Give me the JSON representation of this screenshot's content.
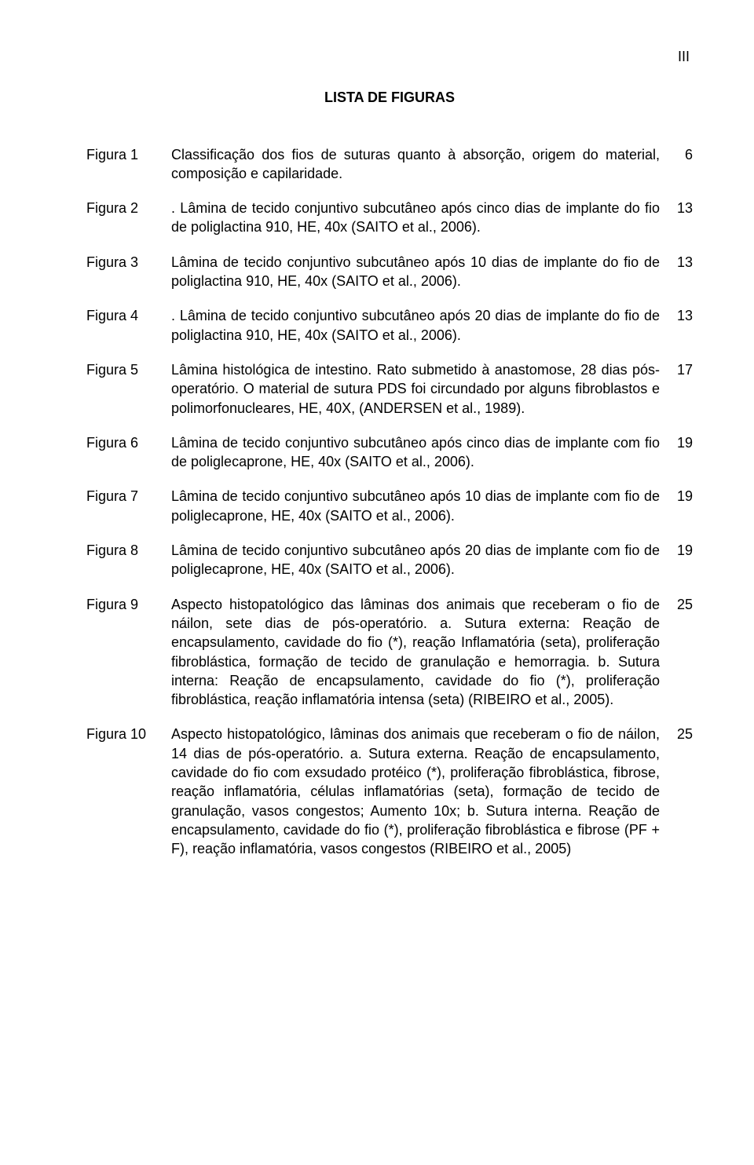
{
  "page_number_roman": "III",
  "title": "LISTA DE FIGURAS",
  "entries": [
    {
      "label": "Figura 1",
      "desc": "Classificação dos fios de suturas quanto à absorção, origem do material, composição e capilaridade.",
      "page": "6"
    },
    {
      "label": "Figura 2",
      "desc": ". Lâmina de tecido conjuntivo subcutâneo após cinco dias de implante do fio de poliglactina 910, HE, 40x (SAITO et al., 2006).",
      "page": "13"
    },
    {
      "label": "Figura 3",
      "desc": "Lâmina de tecido conjuntivo subcutâneo após 10 dias de implante do fio de poliglactina 910, HE, 40x (SAITO et al., 2006).",
      "page": "13"
    },
    {
      "label": "Figura 4",
      "desc": ". Lâmina de tecido conjuntivo subcutâneo após 20 dias de implante do fio de poliglactina 910, HE, 40x (SAITO et al., 2006).",
      "page": "13"
    },
    {
      "label": "Figura 5",
      "desc": "Lâmina histológica de intestino. Rato submetido à anastomose, 28 dias pós-operatório. O material de sutura PDS foi circundado por alguns fibroblastos e polimorfonucleares, HE, 40X, (ANDERSEN et al., 1989).",
      "page": "17"
    },
    {
      "label": "Figura 6",
      "desc": "Lâmina de tecido conjuntivo subcutâneo após cinco dias de implante com fio de poliglecaprone, HE, 40x (SAITO et al., 2006).",
      "page": "19"
    },
    {
      "label": "Figura 7",
      "desc": "Lâmina de tecido conjuntivo subcutâneo após 10 dias de implante com fio de poliglecaprone, HE, 40x (SAITO et al., 2006).",
      "page": "19"
    },
    {
      "label": "Figura 8",
      "desc": "Lâmina de tecido conjuntivo subcutâneo após 20 dias de implante com fio de poliglecaprone, HE, 40x (SAITO et al., 2006).",
      "page": "19"
    },
    {
      "label": "Figura 9",
      "desc": "Aspecto histopatológico das lâminas dos animais que receberam o fio de náilon, sete dias de pós-operatório. a. Sutura externa: Reação de encapsulamento, cavidade do fio (*), reação Inflamatória (seta), proliferação fibroblástica, formação de tecido de granulação e hemorragia. b. Sutura interna: Reação de encapsulamento, cavidade do fio (*), proliferação fibroblástica, reação inflamatória intensa (seta) (RIBEIRO et al., 2005).",
      "page": "25"
    },
    {
      "label": "Figura 10",
      "desc": "Aspecto histopatológico, lâminas dos animais que receberam o fio de náilon, 14 dias de pós-operatório. a. Sutura externa. Reação de encapsulamento, cavidade do fio com exsudado protéico (*), proliferação fibroblástica, fibrose, reação inflamatória, células inflamatórias (seta), formação de tecido de granulação, vasos congestos; Aumento 10x; b. Sutura interna. Reação de encapsulamento, cavidade do fio (*), proliferação fibroblástica e fibrose (PF + F), reação inflamatória, vasos congestos (RIBEIRO et al., 2005)",
      "page": "25"
    }
  ]
}
